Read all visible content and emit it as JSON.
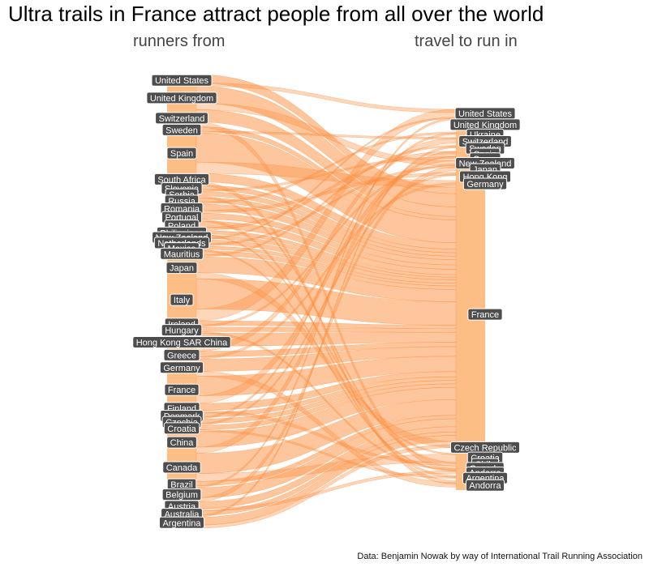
{
  "title": "Ultra trails in France attract people from all over the world",
  "left_heading": "runners from",
  "right_heading": "travel to run in",
  "caption": "Data: Benjamin Nowak by way of International Trail Running Association",
  "colors": {
    "strata": "#FDBE85",
    "flow": "#FD8D3C",
    "label_bg": "#4D4D4D",
    "label_text": "#FFFFFF"
  },
  "chart_data": {
    "type": "alluvial",
    "axes": [
      "runners from",
      "travel to run in"
    ],
    "origins": [
      {
        "name": "United States",
        "value": 1.5
      },
      {
        "name": "United Kingdom",
        "value": 3.0
      },
      {
        "name": "Switzerland",
        "value": 2.2
      },
      {
        "name": "Sweden",
        "value": 0.8
      },
      {
        "name": "Spain",
        "value": 5.2
      },
      {
        "name": "South Africa",
        "value": 1.5
      },
      {
        "name": "Slovenia",
        "value": 0.8
      },
      {
        "name": "Serbia",
        "value": 0.8
      },
      {
        "name": "Russia",
        "value": 0.8
      },
      {
        "name": "Romania",
        "value": 1.2
      },
      {
        "name": "Portugal",
        "value": 1.0
      },
      {
        "name": "Poland",
        "value": 1.2
      },
      {
        "name": "Philippines",
        "value": 0.6
      },
      {
        "name": "New Zealand",
        "value": 0.6
      },
      {
        "name": "Netherlands",
        "value": 0.8
      },
      {
        "name": "Mexico",
        "value": 0.6
      },
      {
        "name": "Mauritius",
        "value": 0.8
      },
      {
        "name": "Japan",
        "value": 2.8
      },
      {
        "name": "Italy",
        "value": 5.4
      },
      {
        "name": "Ireland",
        "value": 0.8
      },
      {
        "name": "Hungary",
        "value": 0.8
      },
      {
        "name": "Hong Kong SAR China",
        "value": 2.3
      },
      {
        "name": "Greece",
        "value": 1.0
      },
      {
        "name": "Germany",
        "value": 2.2
      },
      {
        "name": "France",
        "value": 3.5
      },
      {
        "name": "Finland",
        "value": 1.2
      },
      {
        "name": "Denmark",
        "value": 0.8
      },
      {
        "name": "Czechia",
        "value": 0.8
      },
      {
        "name": "Croatia",
        "value": 0.8
      },
      {
        "name": "China",
        "value": 2.8
      },
      {
        "name": "Canada",
        "value": 3.6
      },
      {
        "name": "Brazil",
        "value": 0.8
      },
      {
        "name": "Belgium",
        "value": 1.8
      },
      {
        "name": "Austria",
        "value": 1.2
      },
      {
        "name": "Australia",
        "value": 0.8
      },
      {
        "name": "Argentina",
        "value": 1.4
      }
    ],
    "destinations": [
      {
        "name": "United States",
        "value": 1.2
      },
      {
        "name": "United Kingdom",
        "value": 2.2
      },
      {
        "name": "Ukraine",
        "value": 0.8
      },
      {
        "name": "Switzerland",
        "value": 1.2
      },
      {
        "name": "Sweden",
        "value": 0.9
      },
      {
        "name": "Spain",
        "value": 0.8
      },
      {
        "name": "Oman",
        "value": 0.6
      },
      {
        "name": "New Zealand",
        "value": 0.8
      },
      {
        "name": "Japan",
        "value": 1.0
      },
      {
        "name": "Hong Kong",
        "value": 1.2
      },
      {
        "name": "Germany",
        "value": 1.0
      },
      {
        "name": "France",
        "value": 38.2
      },
      {
        "name": "Czech Republic",
        "value": 1.8
      },
      {
        "name": "Croatia",
        "value": 1.3
      },
      {
        "name": "Chile",
        "value": 0.6
      },
      {
        "name": "Canada",
        "value": 0.6
      },
      {
        "name": "Andorra mid",
        "value": 0.8
      },
      {
        "name": "Argentina",
        "value": 0.8
      },
      {
        "name": "Andorra",
        "value": 1.4
      }
    ]
  }
}
